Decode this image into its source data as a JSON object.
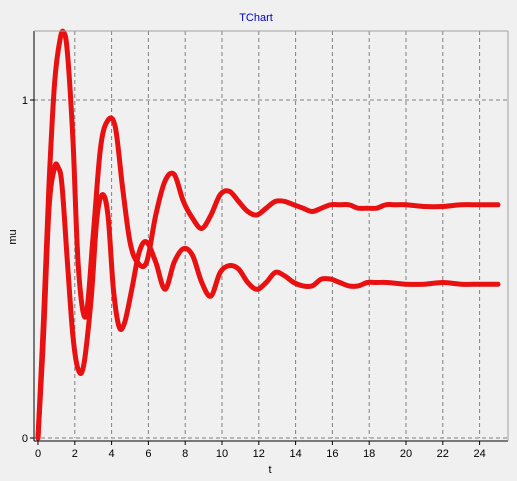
{
  "chart_data": {
    "type": "line",
    "title": "TChart",
    "xlabel": "t",
    "ylabel": "mu",
    "xlim": [
      0,
      25
    ],
    "ylim": [
      0,
      1.2
    ],
    "x_ticks": [
      0,
      2,
      4,
      6,
      8,
      10,
      12,
      14,
      16,
      18,
      20,
      22,
      24
    ],
    "y_ticks": [
      0,
      1
    ],
    "grid": true,
    "legend": "none",
    "series_color": "#e81010",
    "background": "#f0f0f0",
    "series": [
      {
        "x": [
          0,
          0.3,
          0.6,
          0.9,
          1.2,
          1.4,
          1.6,
          1.9,
          2.2,
          2.6,
          3.0,
          3.4,
          3.8,
          4.2,
          4.6,
          5.0,
          5.4,
          5.9,
          6.4,
          6.9,
          7.4,
          7.9,
          8.4,
          8.9,
          9.4,
          9.9,
          10.4,
          10.9,
          11.4,
          11.9,
          12.4,
          12.9,
          13.4,
          13.9,
          14.4,
          14.9,
          15.4,
          15.9,
          16.4,
          16.9,
          17.4,
          17.9,
          18.4,
          18.9,
          19.4,
          20,
          21,
          22,
          23,
          24,
          25
        ],
        "y": [
          0,
          0.35,
          0.75,
          1.05,
          1.18,
          1.2,
          1.14,
          0.88,
          0.5,
          0.36,
          0.6,
          0.86,
          0.94,
          0.92,
          0.74,
          0.58,
          0.52,
          0.52,
          0.66,
          0.76,
          0.78,
          0.7,
          0.65,
          0.62,
          0.66,
          0.72,
          0.73,
          0.7,
          0.67,
          0.66,
          0.68,
          0.7,
          0.7,
          0.69,
          0.68,
          0.67,
          0.68,
          0.69,
          0.69,
          0.69,
          0.68,
          0.68,
          0.68,
          0.69,
          0.69,
          0.69,
          0.685,
          0.685,
          0.69,
          0.69,
          0.69
        ]
      },
      {
        "x": [
          0,
          0.3,
          0.6,
          0.9,
          1.1,
          1.3,
          1.6,
          1.9,
          2.2,
          2.5,
          2.9,
          3.2,
          3.5,
          3.8,
          4.1,
          4.4,
          4.7,
          5.1,
          5.5,
          5.9,
          6.4,
          6.9,
          7.4,
          7.9,
          8.4,
          8.9,
          9.4,
          9.9,
          10.4,
          10.9,
          11.4,
          11.9,
          12.4,
          12.9,
          13.4,
          13.9,
          14.4,
          14.9,
          15.4,
          15.9,
          16.4,
          16.9,
          17.4,
          17.9,
          18.4,
          19,
          20,
          21,
          22,
          23,
          24,
          25
        ],
        "y": [
          0,
          0.3,
          0.68,
          0.8,
          0.8,
          0.75,
          0.52,
          0.3,
          0.2,
          0.22,
          0.42,
          0.65,
          0.72,
          0.66,
          0.44,
          0.33,
          0.34,
          0.44,
          0.55,
          0.58,
          0.52,
          0.44,
          0.52,
          0.56,
          0.54,
          0.46,
          0.42,
          0.49,
          0.51,
          0.5,
          0.46,
          0.44,
          0.46,
          0.49,
          0.48,
          0.46,
          0.45,
          0.45,
          0.47,
          0.47,
          0.46,
          0.45,
          0.45,
          0.46,
          0.46,
          0.46,
          0.455,
          0.455,
          0.46,
          0.455,
          0.455,
          0.455
        ]
      }
    ]
  }
}
